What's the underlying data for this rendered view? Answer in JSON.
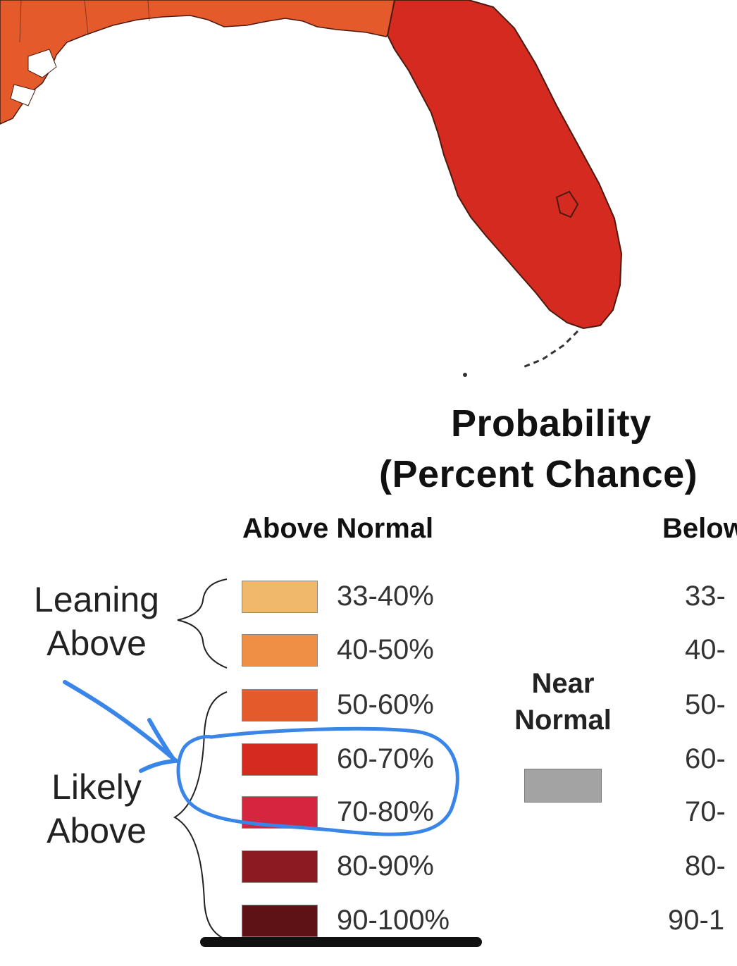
{
  "map": {
    "colors": {
      "florida_fill": "#d42a1f",
      "northern_fill": "#e55a2b",
      "border": "#4a1a10"
    }
  },
  "legend": {
    "title_line1": "Probability",
    "title_line2": "(Percent Chance)",
    "above_header": "Above Normal",
    "below_header": "Below",
    "groups": {
      "leaning": "Leaning Above",
      "likely": "Likely Above"
    },
    "above": [
      {
        "range": "33-40%",
        "color": "#f0b86a"
      },
      {
        "range": "40-50%",
        "color": "#ee8f45"
      },
      {
        "range": "50-60%",
        "color": "#e55a2b"
      },
      {
        "range": "60-70%",
        "color": "#d42a1f"
      },
      {
        "range": "70-80%",
        "color": "#d4263e"
      },
      {
        "range": "80-90%",
        "color": "#8c1a22"
      },
      {
        "range": "90-100%",
        "color": "#5e1216"
      }
    ],
    "below": [
      "33-",
      "40-",
      "50-",
      "60-",
      "70-",
      "80-",
      "90-1"
    ],
    "near_normal": {
      "label": "Near Normal",
      "color": "#a3a3a3"
    }
  },
  "annotation": {
    "color": "#3a86e8",
    "icon": "hand-drawn-arrow-and-circle"
  }
}
